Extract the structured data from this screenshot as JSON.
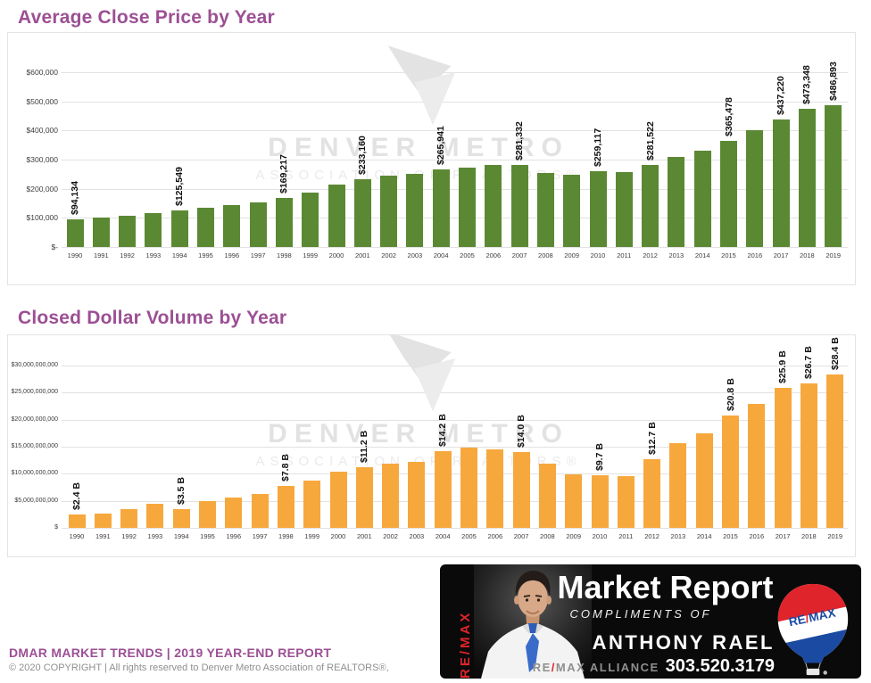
{
  "watermark": {
    "line1": "DENVER METRO",
    "line2": "ASSOCIATION OF REALTORS®"
  },
  "footer": {
    "report": "DMAR MARKET TRENDS | 2019 YEAR-END REPORT",
    "copyright": "© 2020 COPYRIGHT | All rights reserved to Denver Metro Association of REALTORS®,"
  },
  "banner": {
    "vertical_brand": "RE/MAX",
    "title": "Market Report",
    "subtitle": "COMPLIMENTS OF",
    "agent": "ANTHONY RAEL",
    "brokerage_re": "RE",
    "brokerage_slash": "/",
    "brokerage_rest": "MAX ALLIANCE",
    "phone": "303.520.3179",
    "balloon_re": "RE",
    "balloon_slash": "/",
    "balloon_max": "MAX"
  },
  "colors": {
    "title_purple": "#9c4f94",
    "bar_green": "#5b8933",
    "bar_orange": "#f7a83d",
    "banner_red": "#e0242b",
    "balloon_blue": "#1b4aa2"
  },
  "chart_data": [
    {
      "type": "bar",
      "title": "Average Close Price by Year",
      "xlabel": "",
      "ylabel": "",
      "unit": "USD",
      "grid": true,
      "legend": "none",
      "ylim": [
        0,
        600000
      ],
      "categories": [
        "1990",
        "1991",
        "1992",
        "1993",
        "1994",
        "1995",
        "1996",
        "1997",
        "1998",
        "1999",
        "2000",
        "2001",
        "2002",
        "2003",
        "2004",
        "2005",
        "2006",
        "2007",
        "2008",
        "2009",
        "2010",
        "2011",
        "2012",
        "2013",
        "2014",
        "2015",
        "2016",
        "2017",
        "2018",
        "2019"
      ],
      "values": [
        94134,
        101000,
        107000,
        116000,
        125549,
        135000,
        143000,
        152000,
        169217,
        188000,
        215000,
        233160,
        246000,
        252000,
        265941,
        272000,
        283000,
        281332,
        254000,
        248000,
        259117,
        256000,
        281522,
        310000,
        330000,
        365478,
        400000,
        437220,
        473348,
        486893
      ],
      "bar_labels": {
        "1990": "$94,134",
        "1994": "$125,549",
        "1998": "$169,217",
        "2001": "$233,160",
        "2004": "$265,941",
        "2007": "$281,332",
        "2010": "$259,117",
        "2012": "$281,522",
        "2015": "$365,478",
        "2017": "$437,220",
        "2018": "$473,348",
        "2019": "$486,893"
      },
      "y_ticks": [
        "$600,000",
        "$500,000",
        "$400,000",
        "$300,000",
        "$200,000",
        "$100,000",
        "$-"
      ],
      "y_tick_values": [
        600000,
        500000,
        400000,
        300000,
        200000,
        100000,
        0
      ],
      "bar_color": "#5b8933"
    },
    {
      "type": "bar",
      "title": "Closed Dollar Volume by Year",
      "xlabel": "",
      "ylabel": "",
      "unit": "USD billions",
      "grid": true,
      "legend": "none",
      "ylim": [
        0,
        30
      ],
      "categories": [
        "1990",
        "1991",
        "1992",
        "1993",
        "1994",
        "1995",
        "1996",
        "1997",
        "1998",
        "1999",
        "2000",
        "2001",
        "2002",
        "2003",
        "2004",
        "2005",
        "2006",
        "2007",
        "2008",
        "2009",
        "2010",
        "2011",
        "2012",
        "2013",
        "2014",
        "2015",
        "2016",
        "2017",
        "2018",
        "2019"
      ],
      "values": [
        2.4,
        2.6,
        3.4,
        4.5,
        3.5,
        5.0,
        5.6,
        6.2,
        7.8,
        8.8,
        10.4,
        11.2,
        11.8,
        12.2,
        14.2,
        14.9,
        14.5,
        14.0,
        11.9,
        9.9,
        9.7,
        9.6,
        12.7,
        15.7,
        17.5,
        20.8,
        22.9,
        25.9,
        26.7,
        28.4
      ],
      "bar_labels": {
        "1990": "$2.4 B",
        "1994": "$3.5 B",
        "1998": "$7.8 B",
        "2001": "$11.2 B",
        "2004": "$14.2 B",
        "2007": "$14.0 B",
        "2010": "$9.7 B",
        "2012": "$12.7 B",
        "2015": "$20.8 B",
        "2017": "$25.9 B",
        "2018": "$26.7 B",
        "2019": "$28.4 B"
      },
      "y_ticks": [
        "$30,000,000,000",
        "$25,000,000,000",
        "$20,000,000,000",
        "$15,000,000,000",
        "$10,000,000,000",
        "$5,000,000,000",
        "$"
      ],
      "y_tick_values": [
        30,
        25,
        20,
        15,
        10,
        5,
        0
      ],
      "bar_color": "#f7a83d"
    }
  ]
}
